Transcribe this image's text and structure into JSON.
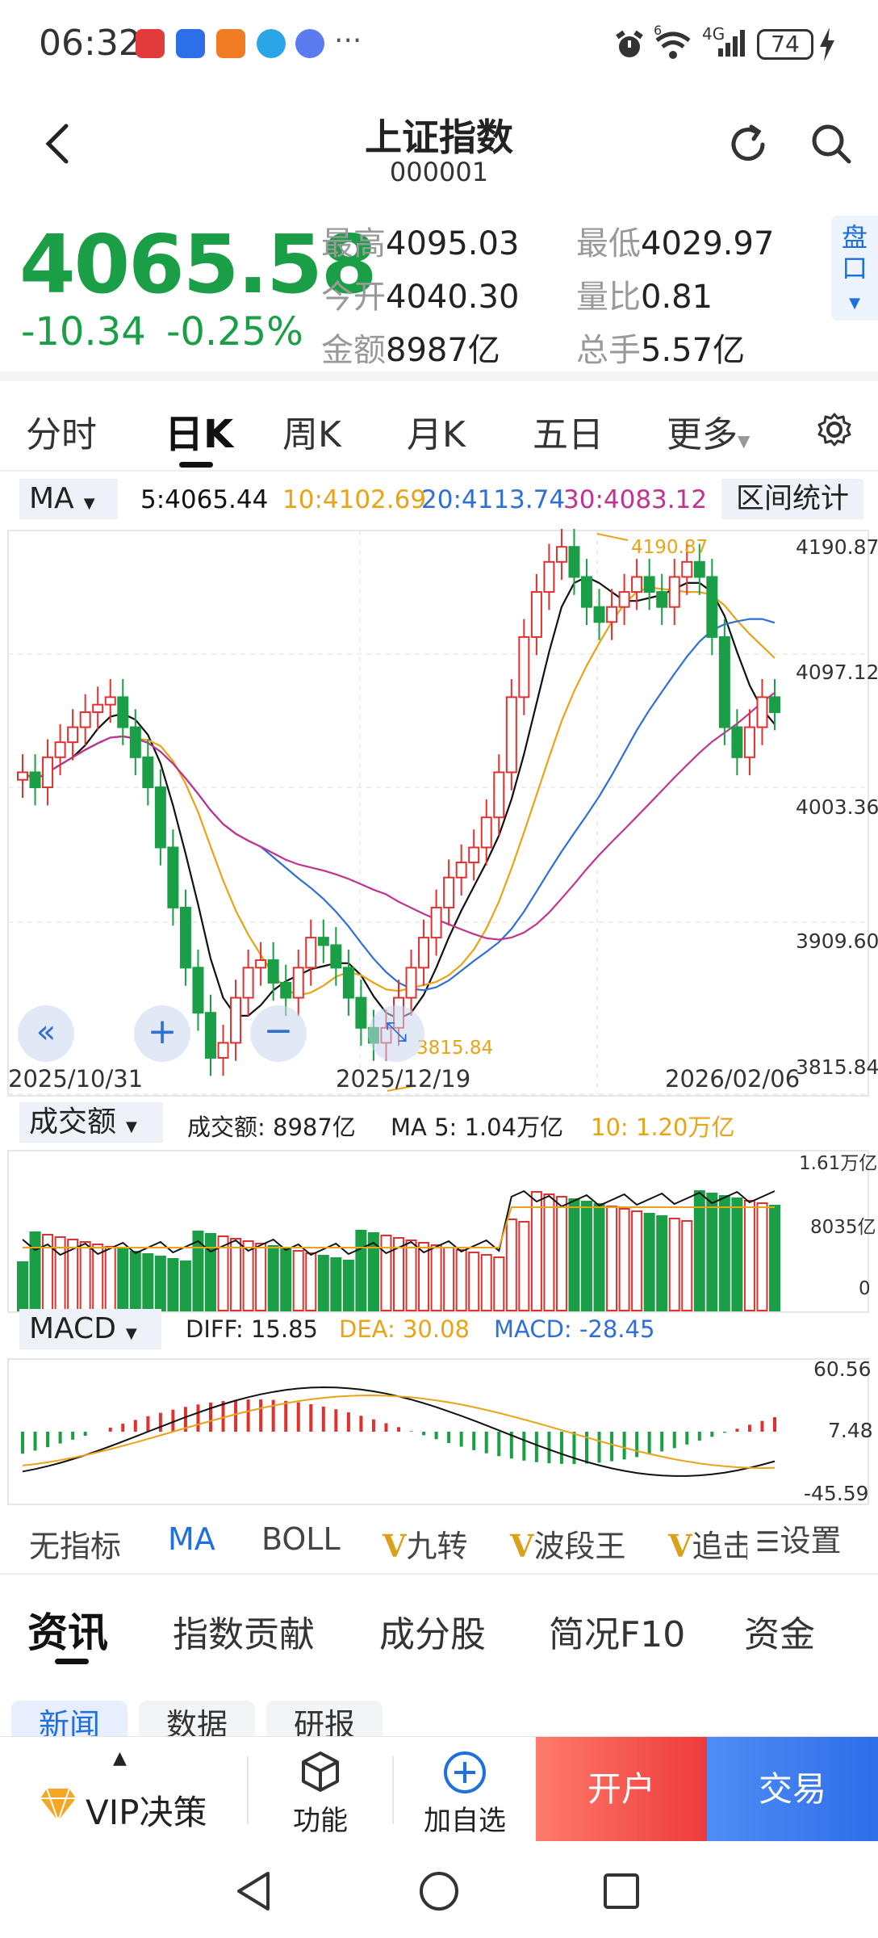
{
  "status_bar": {
    "time": "06:32",
    "more": "···",
    "network": "4G",
    "wifi_badge": "6",
    "battery": "74"
  },
  "header": {
    "title": "上证指数",
    "code": "000001"
  },
  "quote": {
    "price": "4065.58",
    "change": "-10.34",
    "change_pct": "-0.25%",
    "stats": [
      {
        "label": "最高",
        "value": "4095.03"
      },
      {
        "label": "最低",
        "value": "4029.97"
      },
      {
        "label": "今开",
        "value": "4040.30"
      },
      {
        "label": "量比",
        "value": "0.81"
      },
      {
        "label": "金额",
        "value": "8987亿"
      },
      {
        "label": "总手",
        "value": "5.57亿"
      }
    ],
    "pankou": "盘口"
  },
  "period_tabs": [
    "分时",
    "日K",
    "周K",
    "月K",
    "五日",
    "更多"
  ],
  "ma_bar": {
    "selector": "MA",
    "ma5": "5:4065.44",
    "ma10": "10:4102.69",
    "ma20": "20:4113.74",
    "ma30": "30:4083.12",
    "interval_btn": "区间统计"
  },
  "kline": {
    "y_ticks": [
      "4190.87",
      "4097.12",
      "4003.36",
      "3909.60",
      "3815.84"
    ],
    "dates": [
      "2025/10/31",
      "2025/12/19",
      "2026/02/06"
    ],
    "high_label": "4190.87",
    "low_label": "3815.84"
  },
  "volume_bar": {
    "selector": "成交额",
    "amount": "成交额: 8987亿",
    "ma5": "MA 5: 1.04万亿",
    "ma10": "10: 1.20万亿",
    "y_ticks": [
      "1.61万亿",
      "8035亿",
      "0"
    ]
  },
  "macd_bar": {
    "selector": "MACD",
    "diff": "DIFF: 15.85",
    "dea": "DEA: 30.08",
    "macd": "MACD: -28.45",
    "y_ticks": [
      "60.56",
      "7.48",
      "-45.59"
    ]
  },
  "indicator_tabs": [
    "无指标",
    "MA",
    "BOLL",
    "九转",
    "波段王",
    "追击"
  ],
  "indicator_settings": "设置",
  "news_tabs": [
    "资讯",
    "指数贡献",
    "成分股",
    "简况F10",
    "资金"
  ],
  "sub_tabs": [
    "新闻",
    "数据",
    "研报"
  ],
  "bottom_bar": {
    "vip": "VIP决策",
    "func": "功能",
    "add": "加自选",
    "open": "开户",
    "trade": "交易"
  },
  "colors": {
    "up": "#e03131",
    "down": "#1a9e46",
    "ma5": "#111111",
    "ma10": "#e8a317",
    "ma20": "#2f6fd6",
    "ma30": "#c2338f",
    "accent": "#1f6fe0"
  }
}
